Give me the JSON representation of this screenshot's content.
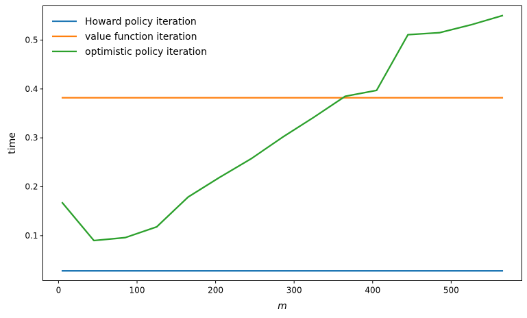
{
  "chart_data": {
    "type": "line",
    "xlabel": "m",
    "ylabel": "time",
    "xlim": [
      -20,
      590
    ],
    "ylim": [
      0.008,
      0.57
    ],
    "xticks": [
      0,
      100,
      200,
      300,
      400,
      500
    ],
    "yticks": [
      0.1,
      0.2,
      0.3,
      0.4,
      0.5
    ],
    "legend_position": "top-left",
    "grid": false,
    "series": [
      {
        "name": "Howard policy iteration",
        "color": "#1f77b4",
        "x": [
          5,
          45,
          85,
          125,
          165,
          205,
          245,
          285,
          325,
          365,
          405,
          445,
          485,
          525,
          565
        ],
        "y": [
          0.028,
          0.028,
          0.028,
          0.028,
          0.028,
          0.028,
          0.028,
          0.028,
          0.028,
          0.028,
          0.028,
          0.028,
          0.028,
          0.028,
          0.028
        ]
      },
      {
        "name": "value function iteration",
        "color": "#ff7f0e",
        "x": [
          5,
          45,
          85,
          125,
          165,
          205,
          245,
          285,
          325,
          365,
          405,
          445,
          485,
          525,
          565
        ],
        "y": [
          0.382,
          0.382,
          0.382,
          0.382,
          0.382,
          0.382,
          0.382,
          0.382,
          0.382,
          0.382,
          0.382,
          0.382,
          0.382,
          0.382,
          0.382
        ]
      },
      {
        "name": "optimistic policy iteration",
        "color": "#2ca02c",
        "x": [
          5,
          45,
          85,
          125,
          165,
          205,
          245,
          285,
          325,
          365,
          405,
          445,
          485,
          525,
          565
        ],
        "y": [
          0.167,
          0.09,
          0.096,
          0.118,
          0.179,
          0.219,
          0.257,
          0.301,
          0.342,
          0.385,
          0.397,
          0.511,
          0.515,
          0.531,
          0.55
        ]
      }
    ]
  }
}
